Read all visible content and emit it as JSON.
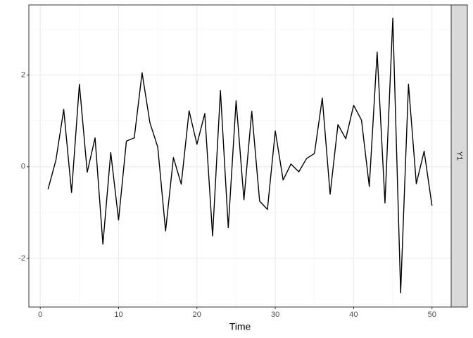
{
  "chart_data": {
    "type": "line",
    "x_label": "Time",
    "strip_label": "Y1",
    "x": [
      1,
      2,
      3,
      4,
      5,
      6,
      7,
      8,
      9,
      10,
      11,
      12,
      13,
      14,
      15,
      16,
      17,
      18,
      19,
      20,
      21,
      22,
      23,
      24,
      25,
      26,
      27,
      28,
      29,
      30,
      31,
      32,
      33,
      34,
      35,
      36,
      37,
      38,
      39,
      40,
      41,
      42,
      43,
      44,
      45,
      46,
      47,
      48,
      49,
      50
    ],
    "series": [
      {
        "color": "#000000",
        "values": [
          -0.49,
          0.14,
          1.25,
          -0.56,
          1.8,
          -0.12,
          0.63,
          -1.69,
          0.31,
          -1.16,
          0.56,
          0.63,
          2.05,
          0.96,
          0.43,
          -1.4,
          0.2,
          -0.38,
          1.22,
          0.49,
          1.16,
          -1.51,
          1.66,
          -1.33,
          1.44,
          -0.72,
          1.21,
          -0.75,
          -0.93,
          0.78,
          -0.29,
          0.06,
          -0.11,
          0.18,
          0.29,
          1.5,
          -0.6,
          0.92,
          0.61,
          1.34,
          1.02,
          -0.43,
          2.5,
          -0.79,
          3.24,
          -2.75,
          1.8,
          -0.37,
          0.34,
          -0.85
        ]
      }
    ],
    "xlim": [
      -1.45,
      52.45
    ],
    "ylim": [
      -3.06,
      3.53
    ],
    "xticks": [
      0,
      10,
      20,
      30,
      40,
      50
    ],
    "yticks": [
      -2,
      0,
      2
    ],
    "minor_xticks": [
      5,
      15,
      25,
      35,
      45
    ],
    "minor_yticks": [
      -3,
      -1,
      1,
      3
    ],
    "grid": true
  }
}
